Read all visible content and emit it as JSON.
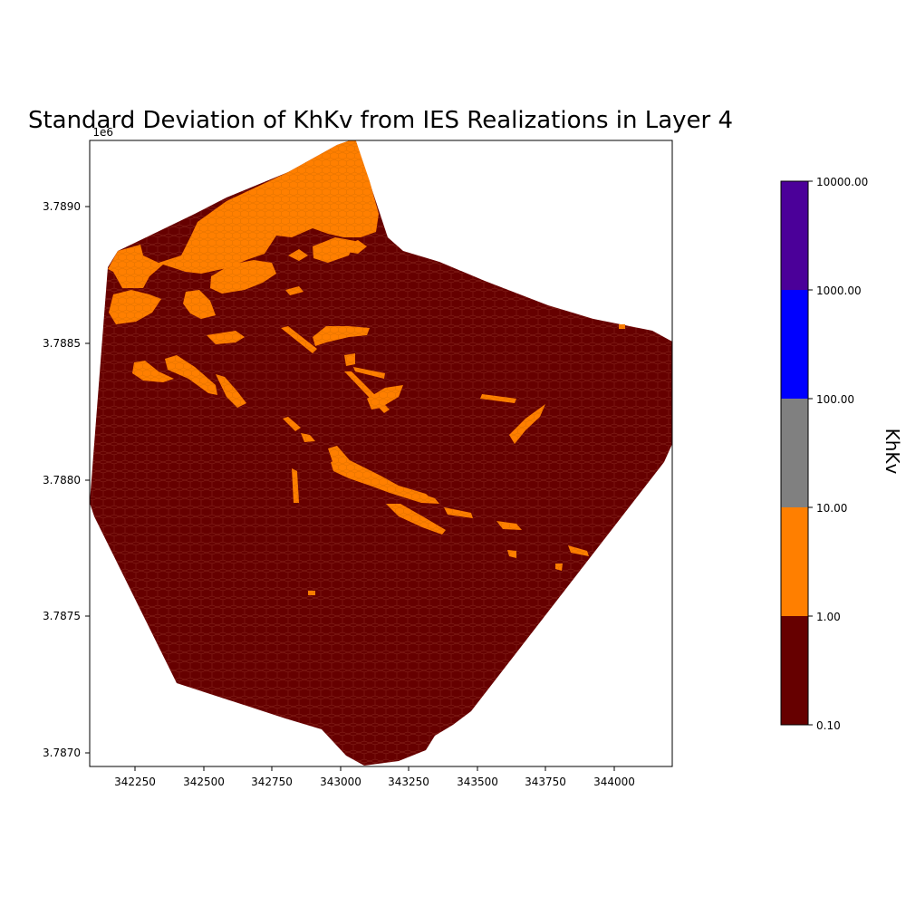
{
  "title": "Standard Deviation of KhKv from IES Realizations in Layer 4",
  "axes": {
    "y_offset_label": "1e6",
    "x_ticks": [
      "342250",
      "342500",
      "342750",
      "343000",
      "343250",
      "343500",
      "343750",
      "344000"
    ],
    "y_ticks": [
      "3.7890",
      "3.7885",
      "3.7880",
      "3.7875",
      "3.7870"
    ],
    "xlim": [
      342080,
      344210
    ],
    "ylim": [
      3786950,
      3789250
    ]
  },
  "colorbar": {
    "label": "KhKv",
    "tick_labels": [
      "10000.00",
      "1000.00",
      "100.00",
      "10.00",
      "1.00",
      "0.10"
    ],
    "bins": [
      {
        "from": 0.1,
        "to": 1,
        "color": "#660000"
      },
      {
        "from": 1,
        "to": 10,
        "color": "#ff7f00"
      },
      {
        "from": 10,
        "to": 100,
        "color": "#808080"
      },
      {
        "from": 100,
        "to": 1000,
        "color": "#0000ff"
      },
      {
        "from": 1000,
        "to": 10000,
        "color": "#4b0099"
      }
    ]
  },
  "map_colors": {
    "low_std": "#660000",
    "high_std": "#ff7f00",
    "cell_edge": "#8a2a20"
  }
}
